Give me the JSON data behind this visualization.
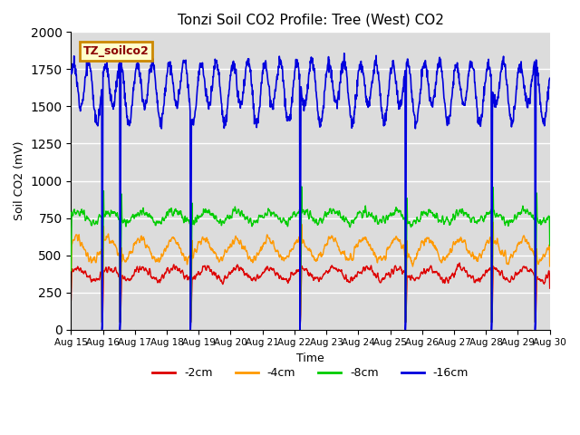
{
  "title": "Tonzi Soil CO2 Profile: Tree (West) CO2",
  "xlabel": "Time",
  "ylabel": "Soil CO2 (mV)",
  "ylim": [
    0,
    2000
  ],
  "bg_color": "#dcdcdc",
  "fig_color": "#ffffff",
  "label_box_text": "TZ_soilco2",
  "label_box_bg": "#ffffcc",
  "label_box_edge": "#cc8800",
  "series": {
    "-2cm": {
      "color": "#dd0000",
      "lw": 1.0
    },
    "-4cm": {
      "color": "#ff9900",
      "lw": 1.0
    },
    "-8cm": {
      "color": "#00cc00",
      "lw": 1.0
    },
    "-16cm": {
      "color": "#0000dd",
      "lw": 1.2
    }
  },
  "legend_labels": [
    "-2cm",
    "-4cm",
    "-8cm",
    "-16cm"
  ],
  "legend_colors": [
    "#dd0000",
    "#ff9900",
    "#00cc00",
    "#0000dd"
  ],
  "x_tick_labels": [
    "Aug 15",
    "Aug 16",
    "Aug 17",
    "Aug 18",
    "Aug 19",
    "Aug 20",
    "Aug 21",
    "Aug 22",
    "Aug 23",
    "Aug 24",
    "Aug 25",
    "Aug 26",
    "Aug 27",
    "Aug 28",
    "Aug 29",
    "Aug 30"
  ],
  "drop_days": [
    0.98,
    1.55,
    3.75,
    7.18,
    10.48,
    13.18,
    14.55
  ],
  "n_days": 15,
  "pts_per_day": 96,
  "seed": 12
}
